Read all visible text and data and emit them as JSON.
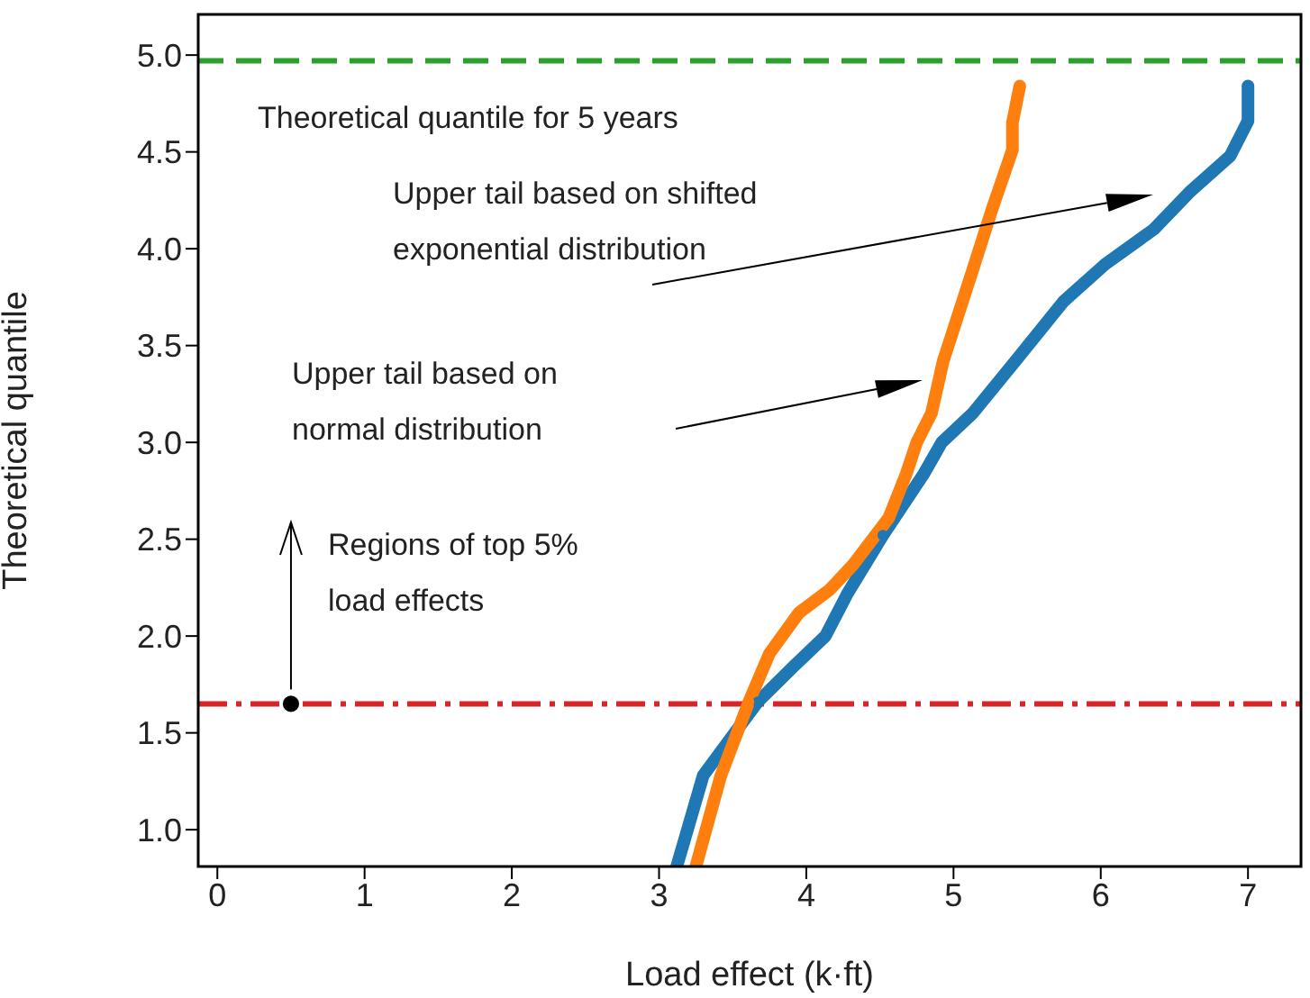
{
  "chart_data": {
    "type": "line",
    "xlabel": "Load effect (k·ft)",
    "ylabel": "Theoretical quantile",
    "xlim": [
      -0.13,
      7.36
    ],
    "ylim": [
      0.81,
      5.21
    ],
    "xticks": [
      0,
      1,
      2,
      3,
      4,
      5,
      6,
      7
    ],
    "yticks": [
      {
        "value": 1,
        "label": "1.0"
      },
      {
        "value": 1.5,
        "label": "1.5"
      },
      {
        "value": 2,
        "label": "2.0"
      },
      {
        "value": 2.5,
        "label": "2.5"
      },
      {
        "value": 3,
        "label": "3.0"
      },
      {
        "value": 3.5,
        "label": "3.5"
      },
      {
        "value": 4,
        "label": "4.0"
      },
      {
        "value": 4.5,
        "label": "4.5"
      },
      {
        "value": 5,
        "label": "5.0"
      }
    ],
    "marker": "circle",
    "series": [
      {
        "color": "#1f77b4",
        "x": [
          3.12,
          3.3,
          3.67,
          3.91,
          4.13,
          4.28,
          4.52,
          4.8,
          4.92,
          5.13,
          5.42,
          5.75,
          6.03,
          6.36,
          6.6,
          6.88,
          7.0,
          7.0
        ],
        "values": [
          0.81,
          1.28,
          1.66,
          1.84,
          2.0,
          2.22,
          2.52,
          2.84,
          3.0,
          3.15,
          3.42,
          3.73,
          3.92,
          4.1,
          4.29,
          4.48,
          4.66,
          4.84
        ]
      },
      {
        "color": "#ff7f0e",
        "x": [
          3.25,
          3.42,
          3.61,
          3.75,
          3.95,
          4.16,
          4.32,
          4.56,
          4.68,
          4.75,
          4.85,
          4.93,
          5.13,
          5.26,
          5.4,
          5.4,
          5.45
        ],
        "values": [
          0.81,
          1.28,
          1.66,
          1.91,
          2.12,
          2.24,
          2.37,
          2.61,
          2.84,
          3.0,
          3.15,
          3.42,
          3.89,
          4.2,
          4.51,
          4.65,
          4.84
        ]
      },
      {
        "type": "scatter",
        "color": "#000000",
        "x": [
          0.5
        ],
        "values": [
          1.65
        ]
      }
    ],
    "ref_lines": [
      {
        "axis": "y",
        "value": 4.97,
        "label": "Theoretical quantile for 5 years",
        "color": "#2ca02c",
        "line_style": "dashed"
      },
      {
        "axis": "y",
        "value": 1.65,
        "color": "#d62728",
        "line_style": "dashdot"
      }
    ],
    "annotations": [
      "Upper tail based on shifted exponential distribution",
      "Upper tail based on normal distribution",
      {
        "text": "Regions of top 5% load effects",
        "x": 0.5,
        "y": 1.65
      }
    ]
  }
}
